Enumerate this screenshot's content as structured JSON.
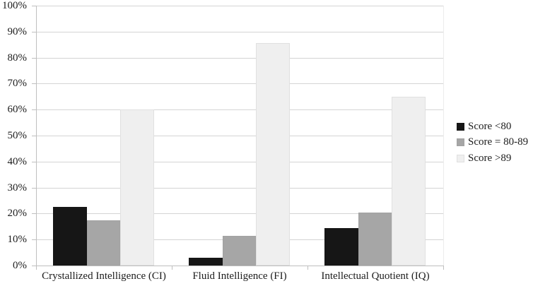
{
  "chart_data": {
    "type": "bar",
    "title": "",
    "xlabel": "",
    "ylabel": "",
    "categories": [
      "Crystallized Intelligence (CI)",
      "Fluid Intelligence (FI)",
      "Intellectual Quotient (IQ)"
    ],
    "series": [
      {
        "name": "Score <80",
        "color": "#161616",
        "border_color": "#161616",
        "values": [
          22.5,
          3.0,
          14.5
        ]
      },
      {
        "name": "Score = 80-89",
        "color": "#a6a6a6",
        "border_color": "#a2a2a2",
        "values": [
          17.5,
          11.5,
          20.5
        ]
      },
      {
        "name": "Score >89",
        "color": "#efefef",
        "border_color": "#e0e0e0",
        "values": [
          60.0,
          85.5,
          65.0
        ]
      }
    ],
    "ylim": [
      0,
      100
    ],
    "ytick_step": 10,
    "yticks": [
      {
        "value": 100,
        "label": "100%"
      },
      {
        "value": 90,
        "label": "90%"
      },
      {
        "value": 80,
        "label": "80%"
      },
      {
        "value": 70,
        "label": "70%"
      },
      {
        "value": 60,
        "label": "60%"
      },
      {
        "value": 50,
        "label": "50%"
      },
      {
        "value": 40,
        "label": "40%"
      },
      {
        "value": 30,
        "label": "30%"
      },
      {
        "value": 20,
        "label": "20%"
      },
      {
        "value": 10,
        "label": "10%"
      },
      {
        "value": 0,
        "label": "0%"
      }
    ],
    "grid": true,
    "legend_position": "right",
    "legend_labels": [
      "Score <80",
      "Score = 80-89",
      "Score >89"
    ]
  },
  "colors": {
    "background": "#ffffff",
    "gridline": "#d4d4d4",
    "axis": "#bfbfbf",
    "plot_right_border": "#ececec",
    "text": "#1c1c1c"
  }
}
